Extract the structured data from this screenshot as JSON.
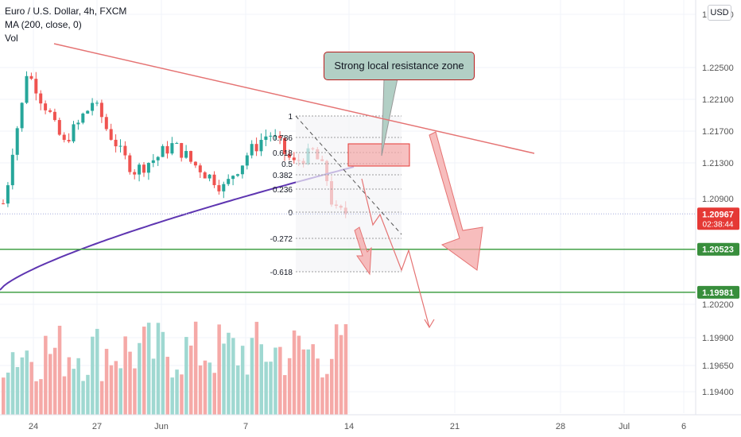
{
  "legend": {
    "title": "Euro / U.S. Dollar, 4h, FXCM",
    "ma": "MA (200, close, 0)",
    "vol": "Vol"
  },
  "currency_button": "USD",
  "annotation": "Strong local resistance zone",
  "chart_data": {
    "type": "candlestick",
    "symbol": "Euro / U.S. Dollar, 4h, FXCM",
    "price_axis_ticks": [
      "1.25000",
      "1.22500",
      "1.22100",
      "1.21700",
      "1.21300",
      "1.20900",
      "1.20200",
      "1.19900",
      "1.19650",
      "1.19400"
    ],
    "time_axis_ticks": [
      "24",
      "27",
      "Jun",
      "7",
      "14",
      "21",
      "28",
      "Jul",
      "6"
    ],
    "price_labels": [
      {
        "value": "1.20967",
        "sub": "02:38:44",
        "color": "#e53935"
      },
      {
        "value": "1.20523",
        "color": "#388e3c"
      },
      {
        "value": "1.19981",
        "color": "#388e3c"
      }
    ],
    "fibonacci_levels": [
      {
        "label": "1",
        "price": 1.222
      },
      {
        "label": "0.786",
        "price": 1.2193
      },
      {
        "label": "0.618",
        "price": 1.2174
      },
      {
        "label": "0.5",
        "price": 1.216
      },
      {
        "label": "0.382",
        "price": 1.2146
      },
      {
        "label": "0.236",
        "price": 1.2128
      },
      {
        "label": "0",
        "price": 1.2099
      },
      {
        "label": "-0.272",
        "price": 1.2066
      },
      {
        "label": "-0.618",
        "price": 1.2024
      }
    ],
    "horizontal_levels": [
      1.20523,
      1.19981
    ],
    "moving_average": {
      "name": "MA (200, close, 0)",
      "color": "#5e35b1"
    },
    "colors": {
      "up": "#26a69a",
      "down": "#ef5350",
      "trendline": "#e57373",
      "support": "#43a047"
    }
  }
}
